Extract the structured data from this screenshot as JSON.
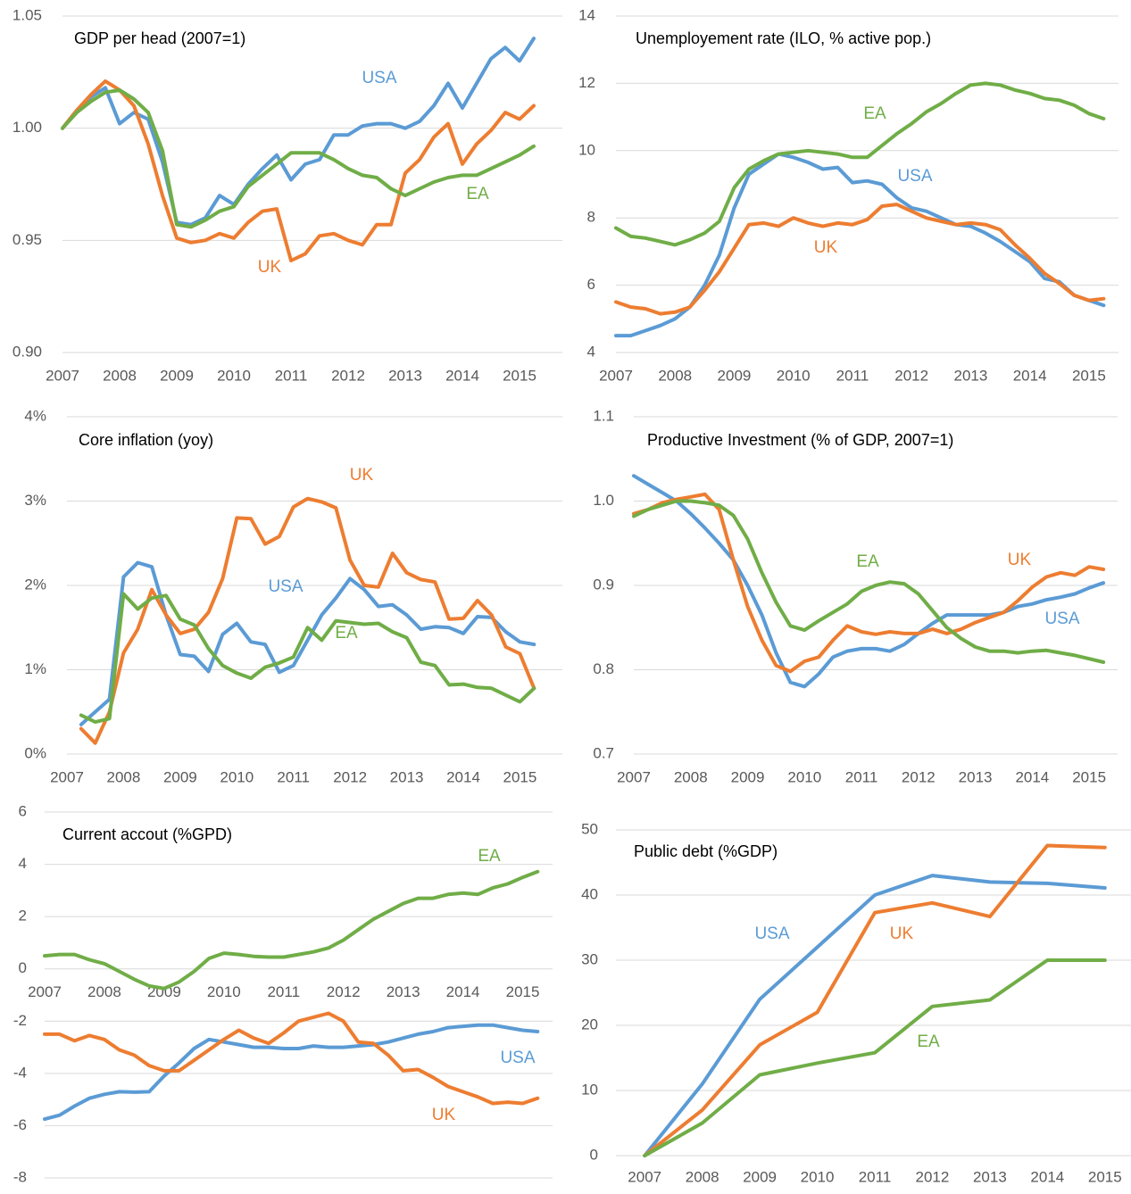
{
  "chart_data": [
    {
      "type": "line",
      "title": "GDP per head (2007=1)",
      "x": [
        2007,
        2007.25,
        2007.5,
        2007.75,
        2008,
        2008.25,
        2008.5,
        2008.75,
        2009,
        2009.25,
        2009.5,
        2009.75,
        2010,
        2010.25,
        2010.5,
        2010.75,
        2011,
        2011.25,
        2011.5,
        2011.75,
        2012,
        2012.25,
        2012.5,
        2012.75,
        2013,
        2013.25,
        2013.5,
        2013.75,
        2014,
        2014.25,
        2014.5,
        2014.75,
        2015,
        2015.25
      ],
      "series": [
        {
          "name": "USA",
          "color": "#5b9bd5",
          "values": [
            1.0,
            1.008,
            1.014,
            1.018,
            1.002,
            1.007,
            1.004,
            0.985,
            0.958,
            0.957,
            0.96,
            0.97,
            0.966,
            0.975,
            0.982,
            0.988,
            0.977,
            0.984,
            0.986,
            0.997,
            0.997,
            1.001,
            1.002,
            1.002,
            1.0,
            1.003,
            1.01,
            1.02,
            1.009,
            1.02,
            1.031,
            1.036,
            1.03,
            1.04
          ]
        },
        {
          "name": "UK",
          "color": "#ed7d31",
          "values": [
            1.0,
            1.008,
            1.015,
            1.021,
            1.017,
            1.01,
            0.993,
            0.97,
            0.951,
            0.949,
            0.95,
            0.953,
            0.951,
            0.958,
            0.963,
            0.964,
            0.941,
            0.944,
            0.952,
            0.953,
            0.95,
            0.948,
            0.957,
            0.957,
            0.98,
            0.986,
            0.996,
            1.002,
            0.984,
            0.993,
            0.999,
            1.007,
            1.004,
            1.01
          ]
        },
        {
          "name": "EA",
          "color": "#70ad47",
          "values": [
            1.0,
            1.007,
            1.012,
            1.016,
            1.017,
            1.013,
            1.007,
            0.99,
            0.957,
            0.956,
            0.959,
            0.963,
            0.965,
            0.974,
            0.979,
            0.984,
            0.989,
            0.989,
            0.989,
            0.986,
            0.982,
            0.979,
            0.978,
            0.973,
            0.97,
            0.973,
            0.976,
            0.978,
            0.979,
            0.979,
            0.982,
            0.985,
            0.988,
            0.992
          ]
        }
      ],
      "xlim": [
        2007,
        2015.75
      ],
      "xticks": [
        2007,
        2008,
        2009,
        2010,
        2011,
        2012,
        2013,
        2014,
        2015
      ],
      "ylim": [
        0.9,
        1.05
      ],
      "yticks": [
        {
          "value": 0.9,
          "label": "0.90"
        },
        0.95,
        {
          "value": 1.0,
          "label": "1.00"
        },
        1.05
      ],
      "grid": true
    },
    {
      "type": "line",
      "title": "Unemployement rate (ILO, % active pop.)",
      "x": [
        2007,
        2007.25,
        2007.5,
        2007.75,
        2008,
        2008.25,
        2008.5,
        2008.75,
        2009,
        2009.25,
        2009.5,
        2009.75,
        2010,
        2010.25,
        2010.5,
        2010.75,
        2011,
        2011.25,
        2011.5,
        2011.75,
        2012,
        2012.25,
        2012.5,
        2012.75,
        2013,
        2013.25,
        2013.5,
        2013.75,
        2014,
        2014.25,
        2014.5,
        2014.75,
        2015,
        2015.25
      ],
      "series": [
        {
          "name": "USA",
          "color": "#5b9bd5",
          "values": [
            4.5,
            4.5,
            4.65,
            4.8,
            5.0,
            5.35,
            6.0,
            6.9,
            8.3,
            9.3,
            9.6,
            9.9,
            9.8,
            9.65,
            9.45,
            9.5,
            9.05,
            9.1,
            9.0,
            8.6,
            8.3,
            8.2,
            8.0,
            7.8,
            7.75,
            7.55,
            7.3,
            7.0,
            6.7,
            6.2,
            6.1,
            5.7,
            5.55,
            5.4
          ]
        },
        {
          "name": "UK",
          "color": "#ed7d31",
          "values": [
            5.5,
            5.35,
            5.3,
            5.15,
            5.2,
            5.35,
            5.85,
            6.4,
            7.1,
            7.8,
            7.85,
            7.75,
            8.0,
            7.85,
            7.75,
            7.85,
            7.8,
            7.95,
            8.35,
            8.4,
            8.2,
            8.0,
            7.9,
            7.8,
            7.85,
            7.8,
            7.65,
            7.2,
            6.8,
            6.35,
            6.05,
            5.7,
            5.55,
            5.6
          ]
        },
        {
          "name": "EA",
          "color": "#70ad47",
          "values": [
            7.7,
            7.45,
            7.4,
            7.3,
            7.2,
            7.35,
            7.55,
            7.9,
            8.9,
            9.45,
            9.7,
            9.9,
            9.95,
            10.0,
            9.95,
            9.9,
            9.8,
            9.8,
            10.15,
            10.5,
            10.8,
            11.15,
            11.4,
            11.7,
            11.95,
            12.0,
            11.95,
            11.8,
            11.7,
            11.55,
            11.5,
            11.35,
            11.1,
            10.95
          ]
        }
      ],
      "xlim": [
        2007,
        2015.5
      ],
      "xticks": [
        2007,
        2008,
        2009,
        2010,
        2011,
        2012,
        2013,
        2014,
        2015
      ],
      "ylim": [
        4,
        14
      ],
      "yticks": [
        4,
        6,
        8,
        10,
        12,
        14
      ],
      "grid": true
    },
    {
      "type": "line",
      "title": "Core inflation (yoy)",
      "x": [
        2007.25,
        2007.5,
        2007.75,
        2008,
        2008.25,
        2008.5,
        2008.75,
        2009,
        2009.25,
        2009.5,
        2009.75,
        2010,
        2010.25,
        2010.5,
        2010.75,
        2011,
        2011.25,
        2011.5,
        2011.75,
        2012,
        2012.25,
        2012.5,
        2012.75,
        2013,
        2013.25,
        2013.5,
        2013.75,
        2014,
        2014.25,
        2014.5,
        2014.75,
        2015,
        2015.25
      ],
      "series": [
        {
          "name": "USA",
          "color": "#5b9bd5",
          "values": [
            0.35,
            0.5,
            0.65,
            2.1,
            2.27,
            2.22,
            1.65,
            1.18,
            1.16,
            0.98,
            1.42,
            1.55,
            1.33,
            1.3,
            0.97,
            1.05,
            1.35,
            1.65,
            1.85,
            2.08,
            1.95,
            1.75,
            1.77,
            1.65,
            1.48,
            1.51,
            1.5,
            1.43,
            1.63,
            1.62,
            1.45,
            1.33,
            1.3
          ]
        },
        {
          "name": "UK",
          "color": "#ed7d31",
          "values": [
            0.3,
            0.13,
            0.5,
            1.2,
            1.48,
            1.95,
            1.65,
            1.43,
            1.48,
            1.68,
            2.08,
            2.8,
            2.79,
            2.49,
            2.58,
            2.93,
            3.03,
            2.99,
            2.92,
            2.3,
            2.0,
            1.98,
            2.38,
            2.15,
            2.07,
            2.04,
            1.6,
            1.61,
            1.82,
            1.65,
            1.27,
            1.19,
            0.78
          ]
        },
        {
          "name": "EA",
          "color": "#70ad47",
          "values": [
            0.46,
            0.38,
            0.42,
            1.9,
            1.72,
            1.85,
            1.88,
            1.6,
            1.53,
            1.25,
            1.05,
            0.96,
            0.9,
            1.03,
            1.08,
            1.15,
            1.5,
            1.35,
            1.58,
            1.56,
            1.54,
            1.55,
            1.45,
            1.38,
            1.09,
            1.05,
            0.82,
            0.83,
            0.79,
            0.78,
            0.7,
            0.62,
            0.78
          ]
        }
      ],
      "xlim": [
        2007,
        2015.75
      ],
      "xticks": [
        2007,
        2008,
        2009,
        2010,
        2011,
        2012,
        2013,
        2014,
        2015
      ],
      "ylim": [
        0,
        4
      ],
      "yticks": [
        {
          "value": 0,
          "label": "0%"
        },
        {
          "value": 1,
          "label": "1%"
        },
        {
          "value": 2,
          "label": "2%"
        },
        {
          "value": 3,
          "label": "3%"
        },
        {
          "value": 4,
          "label": "4%"
        }
      ],
      "grid": true
    },
    {
      "type": "line",
      "title": "Productive Investment (% of GDP, 2007=1)",
      "x": [
        2007,
        2007.25,
        2007.5,
        2007.75,
        2008,
        2008.25,
        2008.5,
        2008.75,
        2009,
        2009.25,
        2009.5,
        2009.75,
        2010,
        2010.25,
        2010.5,
        2010.75,
        2011,
        2011.25,
        2011.5,
        2011.75,
        2012,
        2012.25,
        2012.5,
        2012.75,
        2013,
        2013.25,
        2013.5,
        2013.75,
        2014,
        2014.25,
        2014.5,
        2014.75,
        2015,
        2015.25
      ],
      "series": [
        {
          "name": "USA",
          "color": "#5b9bd5",
          "values": [
            1.03,
            1.02,
            1.01,
            1.0,
            0.985,
            0.968,
            0.95,
            0.93,
            0.9,
            0.865,
            0.82,
            0.785,
            0.78,
            0.795,
            0.815,
            0.822,
            0.825,
            0.825,
            0.822,
            0.83,
            0.843,
            0.855,
            0.865,
            0.865,
            0.865,
            0.865,
            0.868,
            0.875,
            0.878,
            0.883,
            0.886,
            0.89,
            0.897,
            0.903
          ]
        },
        {
          "name": "UK",
          "color": "#ed7d31",
          "values": [
            0.985,
            0.99,
            0.998,
            1.002,
            1.005,
            1.008,
            0.99,
            0.93,
            0.875,
            0.835,
            0.805,
            0.798,
            0.81,
            0.815,
            0.835,
            0.852,
            0.845,
            0.842,
            0.845,
            0.843,
            0.843,
            0.848,
            0.843,
            0.848,
            0.856,
            0.862,
            0.868,
            0.882,
            0.898,
            0.91,
            0.915,
            0.912,
            0.922,
            0.919
          ]
        },
        {
          "name": "EA",
          "color": "#70ad47",
          "values": [
            0.982,
            0.99,
            0.995,
            1.0,
            1.0,
            0.998,
            0.995,
            0.983,
            0.955,
            0.915,
            0.88,
            0.852,
            0.847,
            0.858,
            0.868,
            0.878,
            0.893,
            0.9,
            0.904,
            0.902,
            0.89,
            0.87,
            0.85,
            0.837,
            0.827,
            0.822,
            0.822,
            0.82,
            0.822,
            0.823,
            0.82,
            0.817,
            0.813,
            0.809
          ]
        }
      ],
      "xlim": [
        2007,
        2015.5
      ],
      "xticks": [
        2007,
        2008,
        2009,
        2010,
        2011,
        2012,
        2013,
        2014,
        2015
      ],
      "ylim": [
        0.7,
        1.1
      ],
      "yticks": [
        0.7,
        0.8,
        0.9,
        {
          "value": 1.0,
          "label": "1.0"
        },
        1.1
      ],
      "grid": true
    },
    {
      "type": "line",
      "title": "Current accout (%GPD)",
      "x": [
        2007,
        2007.25,
        2007.5,
        2007.75,
        2008,
        2008.25,
        2008.5,
        2008.75,
        2009,
        2009.25,
        2009.5,
        2009.75,
        2010,
        2010.25,
        2010.5,
        2010.75,
        2011,
        2011.25,
        2011.5,
        2011.75,
        2012,
        2012.25,
        2012.5,
        2012.75,
        2013,
        2013.25,
        2013.5,
        2013.75,
        2014,
        2014.25,
        2014.5,
        2014.75,
        2015,
        2015.25
      ],
      "series": [
        {
          "name": "USA",
          "color": "#5b9bd5",
          "values": [
            -5.75,
            -5.6,
            -5.25,
            -4.95,
            -4.8,
            -4.7,
            -4.72,
            -4.7,
            -4.1,
            -3.6,
            -3.05,
            -2.7,
            -2.8,
            -2.9,
            -3.0,
            -3.0,
            -3.05,
            -3.05,
            -2.95,
            -3.0,
            -3.0,
            -2.95,
            -2.9,
            -2.8,
            -2.65,
            -2.5,
            -2.4,
            -2.25,
            -2.2,
            -2.15,
            -2.15,
            -2.25,
            -2.35,
            -2.4
          ]
        },
        {
          "name": "UK",
          "color": "#ed7d31",
          "values": [
            -2.5,
            -2.5,
            -2.75,
            -2.55,
            -2.7,
            -3.1,
            -3.3,
            -3.7,
            -3.9,
            -3.9,
            -3.5,
            -3.1,
            -2.7,
            -2.35,
            -2.65,
            -2.85,
            -2.45,
            -2.0,
            -1.85,
            -1.7,
            -2.0,
            -2.8,
            -2.85,
            -3.3,
            -3.9,
            -3.85,
            -4.15,
            -4.5,
            -4.7,
            -4.9,
            -5.15,
            -5.1,
            -5.15,
            -4.95
          ]
        },
        {
          "name": "EA",
          "color": "#70ad47",
          "values": [
            0.5,
            0.55,
            0.55,
            0.35,
            0.2,
            -0.1,
            -0.4,
            -0.65,
            -0.75,
            -0.5,
            -0.1,
            0.4,
            0.6,
            0.55,
            0.48,
            0.45,
            0.45,
            0.55,
            0.65,
            0.8,
            1.1,
            1.5,
            1.9,
            2.2,
            2.5,
            2.7,
            2.7,
            2.85,
            2.9,
            2.85,
            3.1,
            3.25,
            3.5,
            3.72
          ]
        }
      ],
      "xlim": [
        2007,
        2015.5
      ],
      "xticks": [
        2007,
        2008,
        2009,
        2010,
        2011,
        2012,
        2013,
        2014,
        2015
      ],
      "ylim": [
        -8,
        6
      ],
      "yticks": [
        -8,
        -6,
        -4,
        -2,
        0,
        2,
        4,
        6
      ],
      "grid": true
    },
    {
      "type": "line",
      "title": "Public debt (%GDP)",
      "categories": [
        "2007",
        "2008",
        "2009",
        "2010",
        "2011",
        "2012",
        "2013",
        "2014",
        "2015"
      ],
      "series": [
        {
          "name": "USA",
          "color": "#5b9bd5",
          "values": [
            0,
            11,
            24,
            32,
            40,
            43,
            42,
            41.8,
            41.1
          ]
        },
        {
          "name": "UK",
          "color": "#ed7d31",
          "values": [
            0,
            7,
            17,
            22,
            37.3,
            38.8,
            36.7,
            47.6,
            47.3
          ]
        },
        {
          "name": "EA",
          "color": "#70ad47",
          "values": [
            0,
            5,
            12.4,
            14.2,
            15.8,
            22.9,
            23.9,
            30,
            30
          ]
        }
      ],
      "ylim": [
        0,
        50
      ],
      "yticks": [
        0,
        10,
        20,
        30,
        40,
        50
      ],
      "grid": true
    }
  ]
}
